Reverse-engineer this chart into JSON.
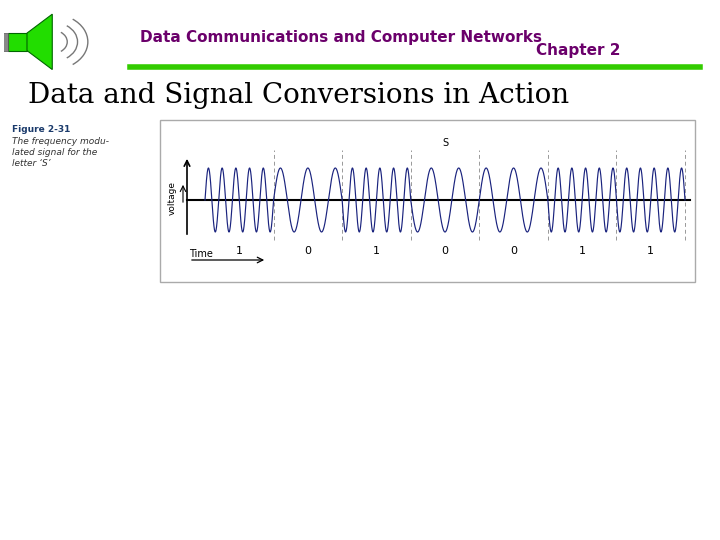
{
  "header_line1": "Data Communications and Computer Networks",
  "header_line2": "Chapter 2",
  "header_text_color": "#6b006b",
  "green_line_color": "#33cc00",
  "slide_title": "Data and Signal Conversions in Action",
  "slide_title_color": "#000000",
  "fig_label": "Figure 2-31",
  "fig_caption_line1": "The frequency modu-",
  "fig_caption_line2": "lated signal for the",
  "fig_caption_line3": "letter ‘S’",
  "fig_label_color": "#1a3a6b",
  "fig_caption_color": "#333333",
  "signal_color": "#1a237e",
  "axis_color": "#000000",
  "dashed_color": "#999999",
  "bit_labels": [
    "1",
    "0",
    "1",
    "0",
    "0",
    "1",
    "1"
  ],
  "s_label": "S",
  "background_color": "#ffffff",
  "box_edge_color": "#aaaaaa",
  "f_high": 5,
  "f_low": 2.5,
  "plot_amp": 0.55
}
